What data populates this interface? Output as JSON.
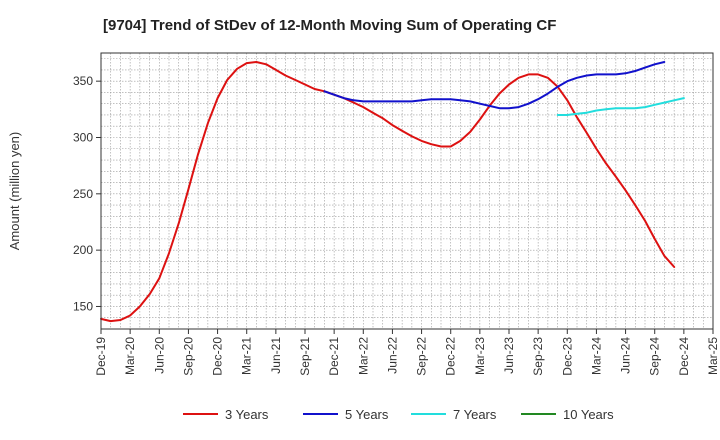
{
  "chart_data": {
    "type": "line",
    "title": "[9704]  Trend of StDev of 12-Month Moving Sum of Operating CF",
    "xlabel": "",
    "ylabel": "Amount (million yen)",
    "ylim": [
      130,
      375
    ],
    "yticks": [
      150,
      200,
      250,
      300,
      350
    ],
    "x_categories": [
      "Dec-19",
      "Mar-20",
      "Jun-20",
      "Sep-20",
      "Dec-20",
      "Mar-21",
      "Jun-21",
      "Sep-21",
      "Dec-21",
      "Mar-22",
      "Jun-22",
      "Sep-22",
      "Dec-22",
      "Mar-23",
      "Jun-23",
      "Sep-23",
      "Dec-23",
      "Mar-24",
      "Jun-24",
      "Sep-24",
      "Dec-24",
      "Mar-25"
    ],
    "grid": true,
    "legend_position": "bottom",
    "series": [
      {
        "name": "3 Years",
        "color": "#dd1111",
        "values": [
          [
            0,
            139
          ],
          [
            0.33,
            137
          ],
          [
            0.67,
            138
          ],
          [
            1,
            142
          ],
          [
            1.33,
            150
          ],
          [
            1.67,
            161
          ],
          [
            2,
            175
          ],
          [
            2.33,
            197
          ],
          [
            2.67,
            224
          ],
          [
            3,
            254
          ],
          [
            3.33,
            285
          ],
          [
            3.67,
            313
          ],
          [
            4,
            335
          ],
          [
            4.33,
            351
          ],
          [
            4.67,
            361
          ],
          [
            5,
            366
          ],
          [
            5.33,
            367
          ],
          [
            5.67,
            365
          ],
          [
            6,
            360
          ],
          [
            6.33,
            355
          ],
          [
            6.67,
            351
          ],
          [
            7,
            347
          ],
          [
            7.33,
            343
          ],
          [
            7.67,
            341
          ],
          [
            8,
            338
          ],
          [
            8.33,
            335
          ],
          [
            8.67,
            331
          ],
          [
            9,
            327
          ],
          [
            9.33,
            322
          ],
          [
            9.67,
            317
          ],
          [
            10,
            311
          ],
          [
            10.33,
            306
          ],
          [
            10.67,
            301
          ],
          [
            11,
            297
          ],
          [
            11.33,
            294
          ],
          [
            11.67,
            292
          ],
          [
            12,
            292
          ],
          [
            12.33,
            297
          ],
          [
            12.67,
            305
          ],
          [
            13,
            316
          ],
          [
            13.33,
            328
          ],
          [
            13.67,
            339
          ],
          [
            14,
            347
          ],
          [
            14.33,
            353
          ],
          [
            14.67,
            356
          ],
          [
            15,
            356
          ],
          [
            15.33,
            353
          ],
          [
            15.67,
            345
          ],
          [
            16,
            333
          ],
          [
            16.33,
            318
          ],
          [
            16.67,
            304
          ],
          [
            17,
            290
          ],
          [
            17.33,
            277
          ],
          [
            17.67,
            265
          ],
          [
            18,
            253
          ],
          [
            18.33,
            240
          ],
          [
            18.67,
            226
          ],
          [
            19,
            210
          ],
          [
            19.33,
            195
          ],
          [
            19.67,
            185
          ]
        ]
      },
      {
        "name": "5 Years",
        "color": "#1111cc",
        "values": [
          [
            7.67,
            341
          ],
          [
            8,
            338
          ],
          [
            8.33,
            335
          ],
          [
            8.67,
            333
          ],
          [
            9,
            332
          ],
          [
            9.33,
            332
          ],
          [
            9.67,
            332
          ],
          [
            10,
            332
          ],
          [
            10.33,
            332
          ],
          [
            10.67,
            332
          ],
          [
            11,
            333
          ],
          [
            11.33,
            334
          ],
          [
            11.67,
            334
          ],
          [
            12,
            334
          ],
          [
            12.33,
            333
          ],
          [
            12.67,
            332
          ],
          [
            13,
            330
          ],
          [
            13.33,
            328
          ],
          [
            13.67,
            326
          ],
          [
            14,
            326
          ],
          [
            14.33,
            327
          ],
          [
            14.67,
            330
          ],
          [
            15,
            334
          ],
          [
            15.33,
            339
          ],
          [
            15.67,
            345
          ],
          [
            16,
            350
          ],
          [
            16.33,
            353
          ],
          [
            16.67,
            355
          ],
          [
            17,
            356
          ],
          [
            17.33,
            356
          ],
          [
            17.67,
            356
          ],
          [
            18,
            357
          ],
          [
            18.33,
            359
          ],
          [
            18.67,
            362
          ],
          [
            19,
            365
          ],
          [
            19.33,
            367
          ]
        ]
      },
      {
        "name": "7 Years",
        "color": "#22dddd",
        "values": [
          [
            15.67,
            320
          ],
          [
            16,
            320
          ],
          [
            16.33,
            321
          ],
          [
            16.67,
            322
          ],
          [
            17,
            324
          ],
          [
            17.33,
            325
          ],
          [
            17.67,
            326
          ],
          [
            18,
            326
          ],
          [
            18.33,
            326
          ],
          [
            18.67,
            327
          ],
          [
            19,
            329
          ],
          [
            19.33,
            331
          ],
          [
            19.67,
            333
          ],
          [
            20,
            335
          ]
        ]
      },
      {
        "name": "10 Years",
        "color": "#228822",
        "values": []
      }
    ]
  }
}
